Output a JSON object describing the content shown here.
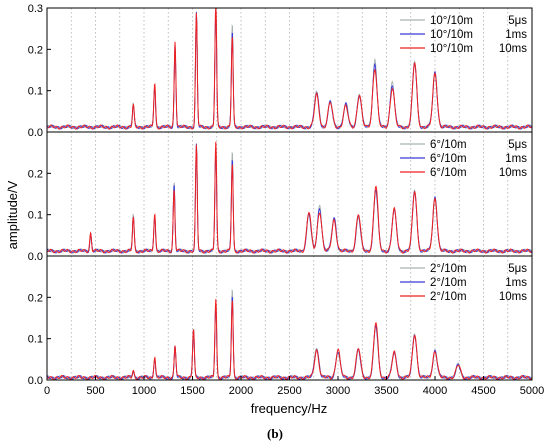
{
  "caption": "(b)",
  "chart_data": {
    "type": "line",
    "xlabel": "frequency/Hz",
    "ylabel": "amplitude/V",
    "xlim": [
      0,
      5000
    ],
    "xticks": [
      "0",
      "500",
      "1000",
      "1500",
      "2000",
      "2500",
      "3000",
      "3500",
      "4000",
      "4500",
      "5000"
    ],
    "grid": "vertical dotted lines every 250 Hz",
    "legend_position": "top-right",
    "line_colors": [
      "#a8b4b4",
      "#3a3ad8",
      "#ee2222"
    ],
    "panels": [
      {
        "ylim": [
          0,
          0.3
        ],
        "yticks": [
          "0.0",
          "0.1",
          "0.2",
          "0.3"
        ],
        "legend": [
          [
            "10°/10m",
            "5μs"
          ],
          [
            "10°/10m",
            "1ms"
          ],
          [
            "10°/10m",
            "10ms"
          ]
        ],
        "baseline": 0.012,
        "peaks": [
          [
            890,
            0.058
          ],
          [
            1110,
            0.095
          ],
          [
            1320,
            0.188
          ],
          [
            1540,
            0.275
          ],
          [
            1740,
            0.27
          ],
          [
            1910,
            0.248
          ],
          [
            2780,
            0.088
          ],
          [
            2920,
            0.06
          ],
          [
            3080,
            0.058
          ],
          [
            3220,
            0.078
          ],
          [
            3380,
            0.162
          ],
          [
            3560,
            0.108
          ],
          [
            3790,
            0.155
          ],
          [
            4000,
            0.132
          ]
        ]
      },
      {
        "ylim": [
          0,
          0.3
        ],
        "yticks": [
          "0.0",
          "0.1",
          "0.2"
        ],
        "legend": [
          [
            "6°/10m",
            "5μs"
          ],
          [
            "6°/10m",
            "1ms"
          ],
          [
            "6°/10m",
            "10ms"
          ]
        ],
        "baseline": 0.012,
        "peaks": [
          [
            450,
            0.04
          ],
          [
            890,
            0.09
          ],
          [
            1110,
            0.082
          ],
          [
            1310,
            0.17
          ],
          [
            1540,
            0.255
          ],
          [
            1740,
            0.235
          ],
          [
            1910,
            0.24
          ],
          [
            2700,
            0.085
          ],
          [
            2810,
            0.11
          ],
          [
            2960,
            0.085
          ],
          [
            3210,
            0.08
          ],
          [
            3390,
            0.14
          ],
          [
            3580,
            0.1
          ],
          [
            3790,
            0.145
          ],
          [
            4000,
            0.13
          ]
        ]
      },
      {
        "ylim": [
          0,
          0.3
        ],
        "yticks": [
          "0.0",
          "0.1",
          "0.2"
        ],
        "legend": [
          [
            "2°/10m",
            "5μs"
          ],
          [
            "2°/10m",
            "1ms"
          ],
          [
            "2°/10m",
            "10ms"
          ]
        ],
        "baseline": 0.006,
        "peaks": [
          [
            890,
            0.018
          ],
          [
            1110,
            0.045
          ],
          [
            1320,
            0.07
          ],
          [
            1510,
            0.115
          ],
          [
            1740,
            0.17
          ],
          [
            1910,
            0.215
          ],
          [
            2780,
            0.075
          ],
          [
            3000,
            0.06
          ],
          [
            3210,
            0.063
          ],
          [
            3390,
            0.118
          ],
          [
            3580,
            0.06
          ],
          [
            3790,
            0.105
          ],
          [
            4000,
            0.065
          ],
          [
            4240,
            0.03
          ]
        ]
      }
    ]
  }
}
